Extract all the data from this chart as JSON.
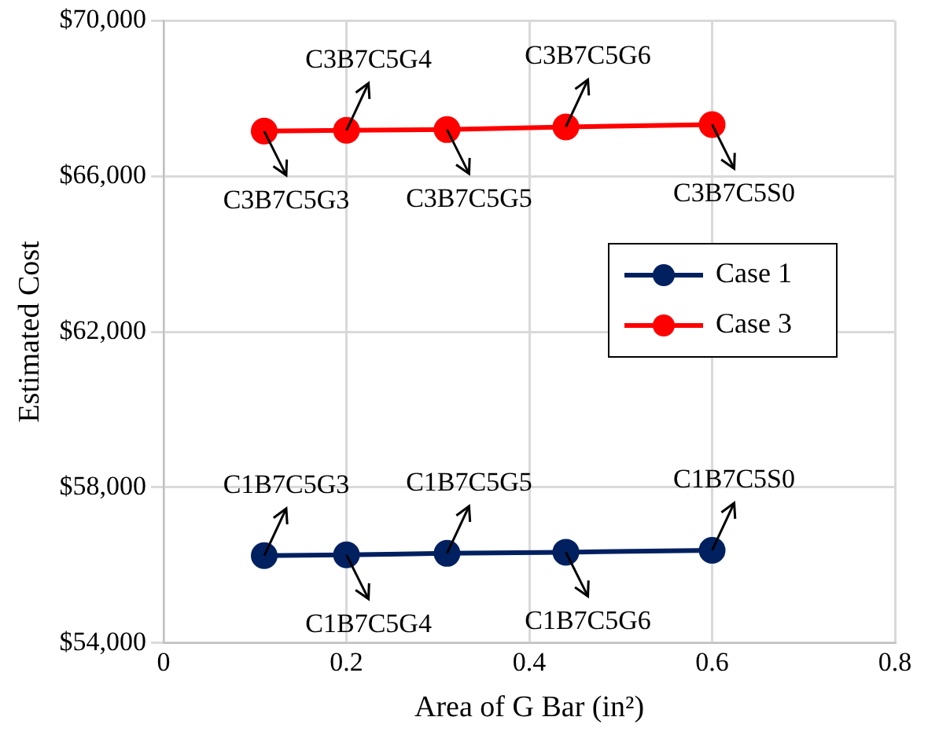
{
  "chart_data": {
    "type": "line",
    "xlabel": "Area of G Bar (in²)",
    "ylabel": "Estimated Cost",
    "x": [
      0.11,
      0.2,
      0.31,
      0.44,
      0.6
    ],
    "series": [
      {
        "name": "Case 1",
        "color": "#002060",
        "values": [
          56240,
          56260,
          56300,
          56330,
          56380
        ]
      },
      {
        "name": "Case 3",
        "color": "#ff0000",
        "values": [
          67160,
          67180,
          67200,
          67270,
          67330
        ]
      }
    ],
    "xlim": [
      0,
      0.8
    ],
    "xticks": [
      0,
      {
        "value": 0.2,
        "label": "0.2"
      },
      {
        "value": 0.4,
        "label": "0.4"
      },
      {
        "value": 0.6,
        "label": "0.6"
      },
      {
        "value": 0.8,
        "label": "0.8"
      }
    ],
    "ylim": [
      54000,
      70000
    ],
    "yticks": [
      {
        "value": 54000,
        "label": "$54,000"
      },
      {
        "value": 58000,
        "label": "$58,000"
      },
      {
        "value": 62000,
        "label": "$62,000"
      },
      {
        "value": 66000,
        "label": "$66,000"
      },
      {
        "value": 70000,
        "label": "$70,000"
      }
    ],
    "grid": true,
    "legend": "right",
    "marker": "circle",
    "line_style": "solid",
    "annotations": [
      {
        "text": "C3B7C5G3",
        "x": 0.11,
        "y": 67160
      },
      {
        "text": "C3B7C5G4",
        "x": 0.2,
        "y": 67180
      },
      {
        "text": "C3B7C5G5",
        "x": 0.31,
        "y": 67200
      },
      {
        "text": "C3B7C5G6",
        "x": 0.44,
        "y": 67270
      },
      {
        "text": "C3B7C5S0",
        "x": 0.6,
        "y": 67330
      },
      {
        "text": "C1B7C5G3",
        "x": 0.11,
        "y": 56240
      },
      {
        "text": "C1B7C5G4",
        "x": 0.2,
        "y": 56260
      },
      {
        "text": "C1B7C5G5",
        "x": 0.31,
        "y": 56300
      },
      {
        "text": "C1B7C5G6",
        "x": 0.44,
        "y": 56330
      },
      {
        "text": "C1B7C5S0",
        "x": 0.6,
        "y": 56380
      }
    ]
  }
}
